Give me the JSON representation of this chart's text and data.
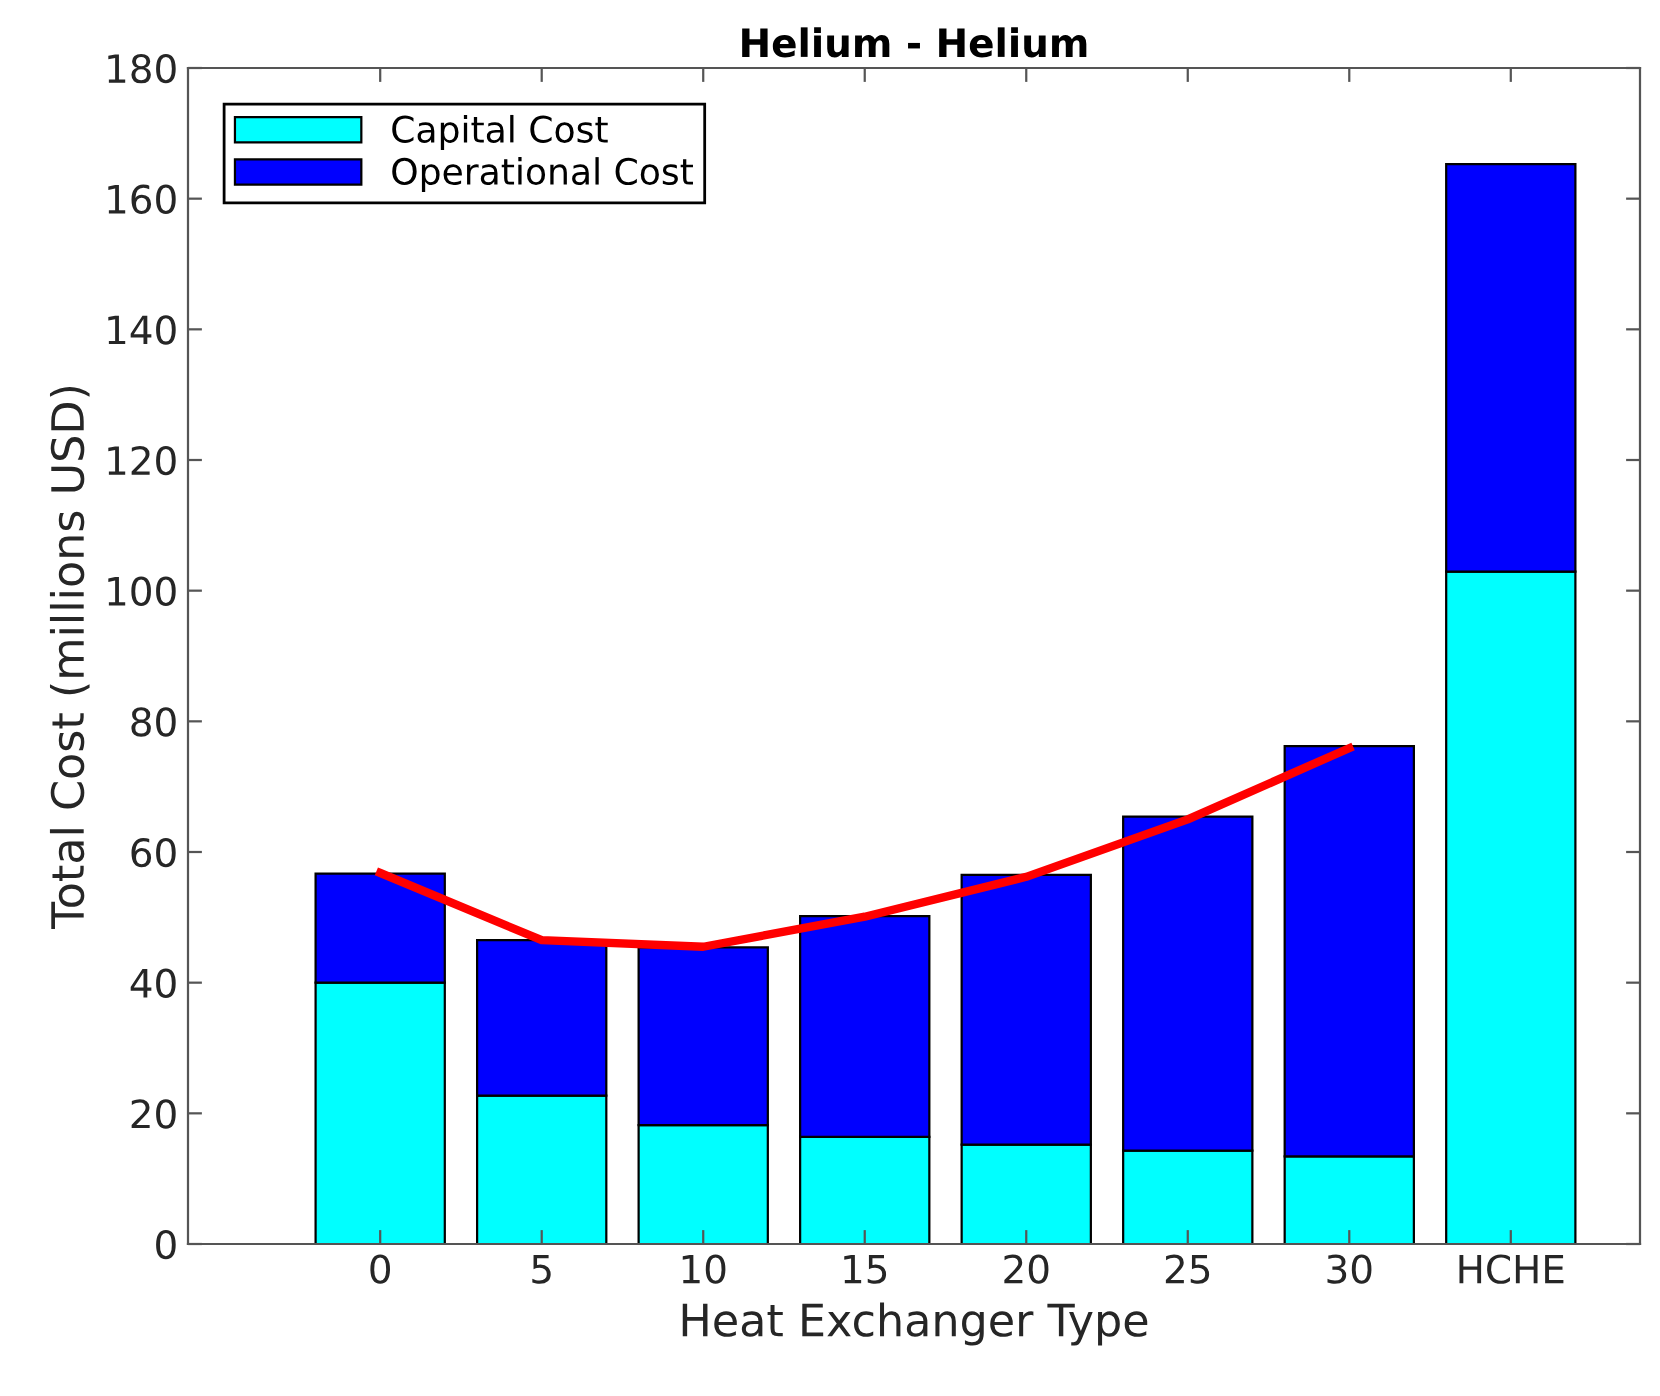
{
  "chart_data": {
    "type": "bar",
    "title": "Helium - Helium",
    "xlabel": "Heat Exchanger Type",
    "ylabel": "Total Cost (millions USD)",
    "categories": [
      "0",
      "5",
      "10",
      "15",
      "20",
      "25",
      "30",
      "HCHE"
    ],
    "stacked": true,
    "series": [
      {
        "name": "Capital Cost",
        "color": "#00ffff",
        "values": [
          40.0,
          22.7,
          18.2,
          16.4,
          15.2,
          14.3,
          13.4,
          102.9
        ]
      },
      {
        "name": "Operational Cost",
        "color": "#0000ff",
        "values": [
          16.7,
          23.8,
          27.2,
          33.8,
          41.3,
          51.1,
          62.8,
          62.4
        ]
      },
      {
        "type": "line",
        "color": "#ff0000",
        "values": [
          56.8,
          46.5,
          45.5,
          50.1,
          56.2,
          65.0,
          75.9,
          null
        ]
      }
    ],
    "ylim": [
      0,
      180
    ],
    "yticks": [
      0,
      20,
      40,
      60,
      80,
      100,
      120,
      140,
      160,
      180
    ],
    "grid": false,
    "legend": "top left"
  }
}
